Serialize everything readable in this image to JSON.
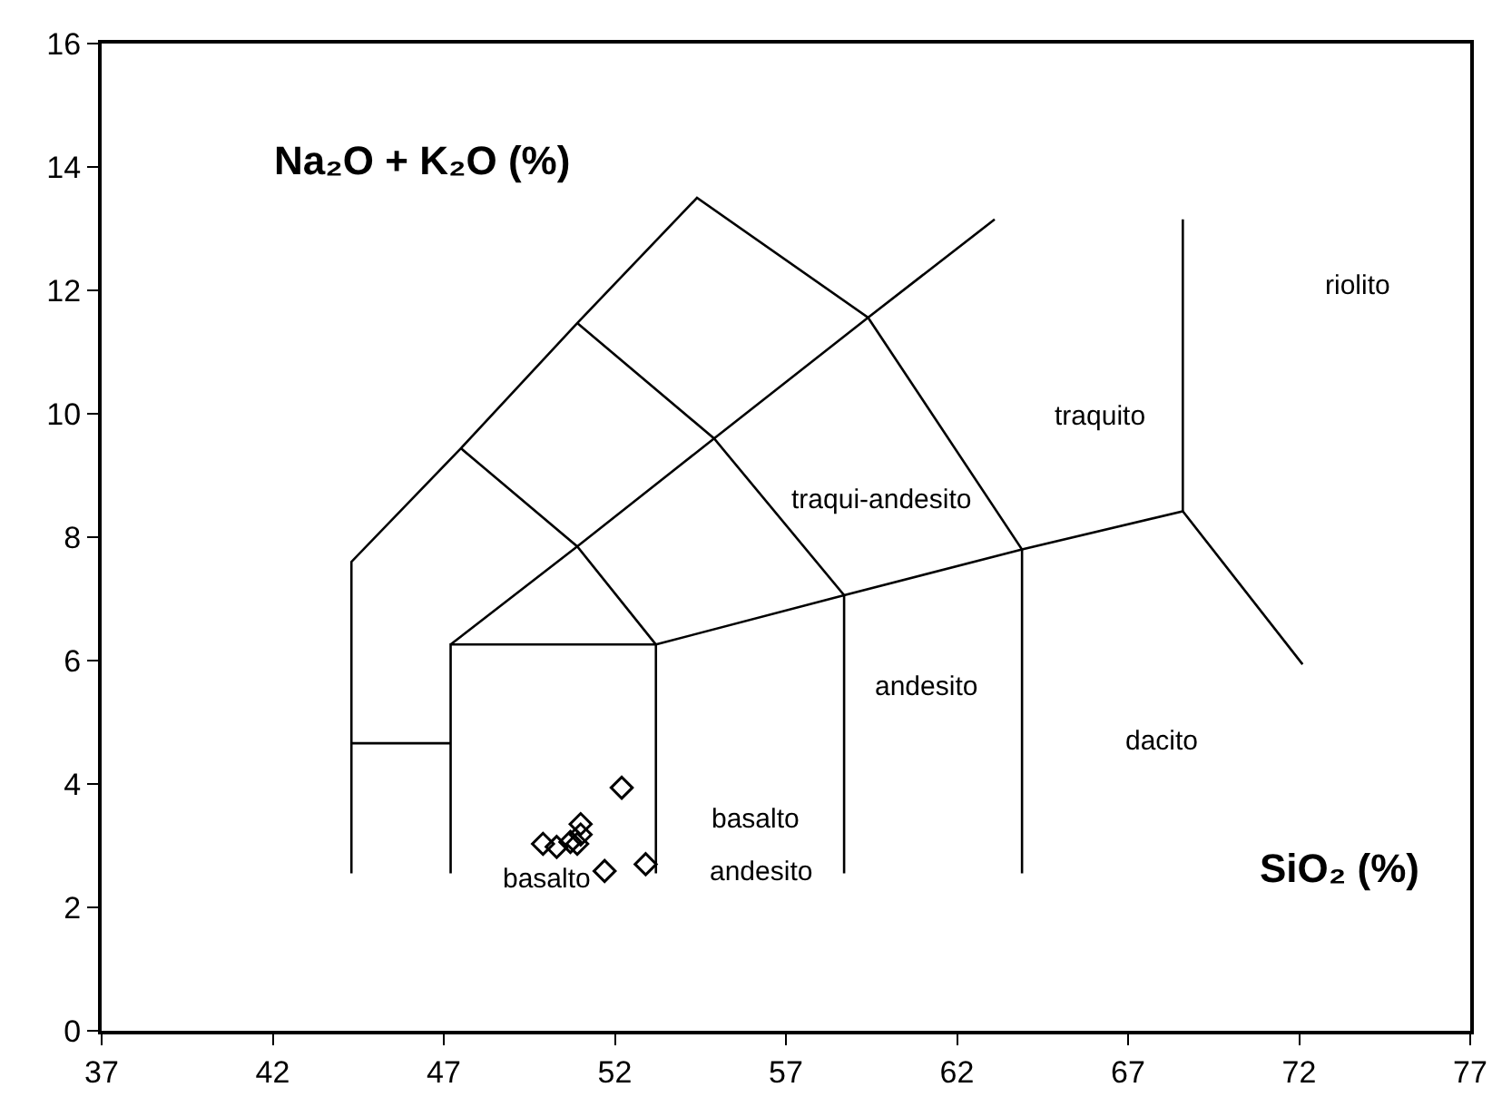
{
  "chart_data": {
    "type": "scatter",
    "xlabel": "SiO₂ (%)",
    "ylabel": "Na₂O + K₂O (%)",
    "xlim": [
      37,
      77
    ],
    "xticks": [
      37,
      42,
      47,
      52,
      57,
      62,
      67,
      72,
      77
    ],
    "ylim": [
      0,
      16
    ],
    "yticks": [
      0,
      2,
      4,
      6,
      8,
      10,
      12,
      14,
      16
    ],
    "grid": false,
    "series": [
      {
        "marker": "diamond",
        "color": "#000000",
        "x": [
          49.9,
          50.3,
          50.7,
          50.9,
          51.0,
          51.0,
          51.7,
          52.2,
          52.9
        ],
        "values": [
          3.03,
          2.98,
          3.06,
          3.03,
          3.18,
          3.35,
          2.59,
          3.94,
          2.7
        ]
      },
      {
        "type": "line",
        "marker": "none",
        "color": "#000000",
        "x": [
          44.3,
          44.3,
          47.5,
          50.9,
          54.4,
          59.4,
          63.9,
          63.9
        ],
        "values": [
          2.55,
          7.6,
          9.44,
          11.47,
          13.5,
          11.56,
          7.8,
          2.55
        ]
      },
      {
        "type": "line",
        "marker": "none",
        "color": "#000000",
        "x": [
          47.2,
          50.9,
          54.9,
          59.4,
          63.1
        ],
        "values": [
          6.26,
          7.85,
          9.6,
          11.56,
          13.15
        ]
      },
      {
        "type": "line",
        "marker": "none",
        "color": "#000000",
        "x": [
          47.2,
          47.2,
          53.2,
          53.2
        ],
        "values": [
          2.55,
          6.26,
          6.26,
          2.55
        ]
      },
      {
        "type": "line",
        "marker": "none",
        "color": "#000000",
        "x": [
          53.2,
          58.7,
          63.9,
          68.6,
          72.1
        ],
        "values": [
          6.26,
          7.06,
          7.8,
          8.42,
          5.94
        ]
      },
      {
        "type": "line",
        "marker": "none",
        "color": "#000000",
        "x": [
          68.6,
          68.6
        ],
        "values": [
          8.42,
          13.15
        ]
      },
      {
        "type": "line",
        "marker": "none",
        "color": "#000000",
        "x": [
          47.5,
          50.9,
          53.2
        ],
        "values": [
          9.44,
          7.85,
          6.26
        ]
      },
      {
        "type": "line",
        "marker": "none",
        "color": "#000000",
        "x": [
          50.9,
          54.9,
          58.7,
          58.7
        ],
        "values": [
          11.47,
          9.6,
          7.06,
          2.55
        ]
      },
      {
        "type": "line",
        "marker": "none",
        "color": "#000000",
        "x": [
          44.3,
          47.2
        ],
        "values": [
          4.66,
          4.66
        ]
      }
    ],
    "annotations": [
      "riolito",
      "traquito",
      "traqui-andesito",
      "andesito",
      "dacito",
      "basalto",
      "andesito",
      "basalto"
    ]
  }
}
